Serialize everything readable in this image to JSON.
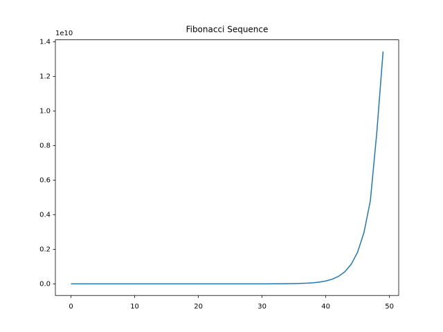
{
  "chart_data": {
    "type": "line",
    "title": "Fibonacci Sequence",
    "x": [
      0,
      1,
      2,
      3,
      4,
      5,
      6,
      7,
      8,
      9,
      10,
      11,
      12,
      13,
      14,
      15,
      16,
      17,
      18,
      19,
      20,
      21,
      22,
      23,
      24,
      25,
      26,
      27,
      28,
      29,
      30,
      31,
      32,
      33,
      34,
      35,
      36,
      37,
      38,
      39,
      40,
      41,
      42,
      43,
      44,
      45,
      46,
      47,
      48,
      49
    ],
    "series": [
      {
        "color": "#1f77b4",
        "values": [
          1,
          1,
          2,
          3,
          5,
          8,
          13,
          21,
          34,
          55,
          89,
          144,
          233,
          377,
          610,
          987,
          1597,
          2584,
          4181,
          6765,
          10946,
          17711,
          28657,
          46368,
          75025,
          121393,
          196418,
          317811,
          514229,
          832040,
          1346269,
          2178309,
          3524578,
          5702887,
          9227465,
          14930352,
          24157817,
          39088169,
          63245986,
          102334155,
          165580141,
          267914296,
          433494437,
          701408733,
          1134903170,
          1836311903,
          2971215073,
          4807526976,
          8700000000,
          13440000000
        ]
      }
    ],
    "xlim": [
      -2.45,
      51.45
    ],
    "xticks": [
      0,
      10,
      20,
      30,
      40,
      50
    ],
    "ylim": [
      -672000000,
      14112000000
    ],
    "yticks": [
      {
        "value": 0,
        "label": "0.0"
      },
      {
        "value": 2000000000,
        "label": "0.2"
      },
      {
        "value": 4000000000,
        "label": "0.4"
      },
      {
        "value": 6000000000,
        "label": "0.6"
      },
      {
        "value": 8000000000,
        "label": "0.8"
      },
      {
        "value": 10000000000,
        "label": "1.0"
      },
      {
        "value": 12000000000,
        "label": "1.2"
      },
      {
        "value": 14000000000,
        "label": "1.4"
      }
    ],
    "y_offset_label": "1e10",
    "grid": false
  }
}
